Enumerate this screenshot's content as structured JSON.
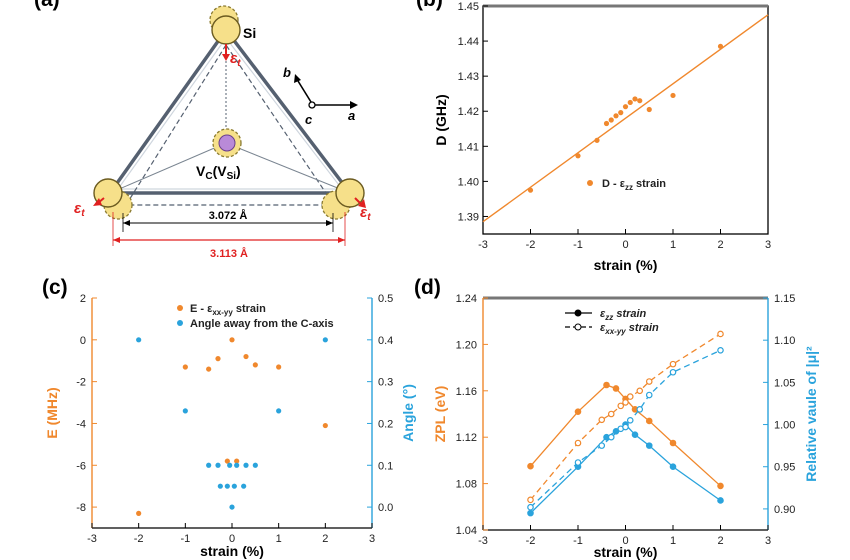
{
  "panel_labels": {
    "a": "(a)",
    "b": "(b)",
    "c": "(c)",
    "d": "(d)"
  },
  "colors": {
    "orange": "#f0882d",
    "blue": "#2aa3dc",
    "red": "#e02020",
    "dark": "#333333"
  },
  "diagram": {
    "si_label": "Si",
    "vc_label_main": "V",
    "vc_label_sub1": "C",
    "vc_label_paren_open": "(V",
    "vc_label_sub2": "Si",
    "vc_label_paren_close": ")",
    "epsilon_symbol": "ε",
    "epsilon_sub": "t",
    "axis_a": "a",
    "axis_b": "b",
    "axis_c": "c",
    "dim_inner": "3.072 Å",
    "dim_outer": "3.113 Å"
  },
  "chart_data": [
    {
      "id": "b",
      "type": "scatter",
      "xlabel": "strain (%)",
      "ylabel": "D (GHz)",
      "xlim": [
        -3,
        3
      ],
      "ylim": [
        1.385,
        1.45
      ],
      "xticks": [
        -3,
        -2,
        -1,
        0,
        1,
        2,
        3
      ],
      "yticks": [
        1.39,
        1.4,
        1.41,
        1.42,
        1.43,
        1.44,
        1.45
      ],
      "xtick_labels": [
        "-3",
        "-2",
        "-1",
        "0",
        "1",
        "2",
        "3"
      ],
      "ytick_labels": [
        "1.39",
        "1.40",
        "1.41",
        "1.42",
        "1.43",
        "1.44",
        "1.45"
      ],
      "legend": {
        "prefix": "D - ε",
        "sub": "zz",
        "suffix": " strain",
        "position": "center-right"
      },
      "series": [
        {
          "name": "D - εzz strain",
          "color": "#f0882d",
          "x": [
            -2,
            -1,
            -0.6,
            -0.4,
            -0.3,
            -0.2,
            -0.1,
            0,
            0.1,
            0.2,
            0.3,
            0.5,
            1,
            2
          ],
          "y": [
            1.3975,
            1.4073,
            1.4117,
            1.4165,
            1.4175,
            1.4187,
            1.4196,
            1.4213,
            1.4225,
            1.4235,
            1.423,
            1.4205,
            1.4245,
            1.4385
          ]
        }
      ],
      "fit_line": {
        "x": [
          -3,
          3
        ],
        "y": [
          1.3885,
          1.4475
        ]
      }
    },
    {
      "id": "c",
      "type": "scatter",
      "xlabel": "strain (%)",
      "ylabel_left": "E (MHz)",
      "ylabel_right": "Angle (°)",
      "xlim": [
        -3,
        3
      ],
      "ylim_left": [
        -9,
        2
      ],
      "ylim_right": [
        -0.05,
        0.5
      ],
      "xticks": [
        -3,
        -2,
        -1,
        0,
        1,
        2,
        3
      ],
      "xtick_labels": [
        "-3",
        "-2",
        "-1",
        "0",
        "1",
        "2",
        "3"
      ],
      "yticks_left": [
        -8,
        -6,
        -4,
        -2,
        0,
        2
      ],
      "ytick_labels_left": [
        "-8",
        "-6",
        "-4",
        "-2",
        "0",
        "2"
      ],
      "yticks_right": [
        0.0,
        0.1,
        0.2,
        0.3,
        0.4,
        0.5
      ],
      "ytick_labels_right": [
        "0.0",
        "0.1",
        "0.2",
        "0.3",
        "0.4",
        "0.5"
      ],
      "legend": [
        {
          "prefix": "E - ε",
          "sub": "xx-yy",
          "suffix": " strain",
          "color": "#f0882d"
        },
        {
          "prefix": "Angle away from the C-axis",
          "sub": "",
          "suffix": "",
          "color": "#2aa3dc"
        }
      ],
      "series": [
        {
          "name": "E - εxx-yy strain",
          "axis": "left",
          "color": "#f0882d",
          "x": [
            -2,
            -1,
            -0.5,
            -0.3,
            -0.1,
            0,
            0.1,
            0.3,
            0.5,
            1,
            2
          ],
          "y": [
            -8.3,
            -1.3,
            -1.4,
            -0.9,
            -5.8,
            0,
            -5.8,
            -0.8,
            -1.2,
            -1.3,
            -4.1
          ]
        },
        {
          "name": "Angle away from the C-axis",
          "axis": "right",
          "color": "#2aa3dc",
          "x": [
            -2,
            -1,
            -0.5,
            -0.3,
            -0.25,
            -0.1,
            -0.05,
            0,
            0.05,
            0.1,
            0.25,
            0.3,
            0.5,
            1,
            2
          ],
          "y": [
            0.4,
            0.23,
            0.1,
            0.1,
            0.05,
            0.05,
            0.1,
            0.0,
            0.05,
            0.1,
            0.05,
            0.1,
            0.1,
            0.23,
            0.4
          ]
        }
      ]
    },
    {
      "id": "d",
      "type": "line",
      "xlabel": "strain (%)",
      "ylabel_left": "ZPL (eV)",
      "ylabel_right": "Relative vaule of |μ|²",
      "xlim": [
        -3,
        3
      ],
      "ylim_left": [
        1.04,
        1.24
      ],
      "ylim_right": [
        0.875,
        1.15
      ],
      "xticks": [
        -3,
        -2,
        -1,
        0,
        1,
        2,
        3
      ],
      "xtick_labels": [
        "-3",
        "-2",
        "-1",
        "0",
        "1",
        "2",
        "3"
      ],
      "yticks_left": [
        1.04,
        1.08,
        1.12,
        1.16,
        1.2,
        1.24
      ],
      "ytick_labels_left": [
        "1.04",
        "1.08",
        "1.12",
        "1.16",
        "1.20",
        "1.24"
      ],
      "yticks_right": [
        0.9,
        0.95,
        1.0,
        1.05,
        1.1,
        1.15
      ],
      "ytick_labels_right": [
        "0.90",
        "0.95",
        "1.00",
        "1.05",
        "1.10",
        "1.15"
      ],
      "legend": [
        {
          "prefix": "ε",
          "sub": "zz",
          "suffix": " strain",
          "dash": false
        },
        {
          "prefix": "ε",
          "sub": "xx-yy",
          "suffix": " strain",
          "dash": true
        }
      ],
      "series": [
        {
          "name": "ZPL εzz strain",
          "axis": "left",
          "color": "#f0882d",
          "dash": false,
          "x": [
            -2,
            -1,
            -0.4,
            -0.2,
            0,
            0.2,
            0.5,
            1,
            2
          ],
          "y": [
            1.095,
            1.142,
            1.165,
            1.162,
            1.153,
            1.144,
            1.134,
            1.115,
            1.078
          ]
        },
        {
          "name": "ZPL εxx-yy strain",
          "axis": "left",
          "color": "#f0882d",
          "dash": true,
          "x": [
            -2,
            -1,
            -0.5,
            -0.3,
            -0.1,
            0,
            0.1,
            0.3,
            0.5,
            1,
            2
          ],
          "y": [
            1.066,
            1.115,
            1.135,
            1.14,
            1.147,
            1.15,
            1.155,
            1.16,
            1.168,
            1.183,
            1.209
          ]
        },
        {
          "name": "|μ|² εzz strain",
          "axis": "right",
          "color": "#2aa3dc",
          "dash": false,
          "x": [
            -2,
            -1,
            -0.4,
            -0.2,
            0,
            0.2,
            0.5,
            1,
            2
          ],
          "y": [
            0.895,
            0.95,
            0.985,
            0.992,
            1.0,
            0.988,
            0.975,
            0.95,
            0.91
          ]
        },
        {
          "name": "|μ|² εxx-yy strain",
          "axis": "right",
          "color": "#2aa3dc",
          "dash": true,
          "x": [
            -2,
            -1,
            -0.5,
            -0.3,
            -0.1,
            0,
            0.1,
            0.3,
            0.5,
            1,
            2
          ],
          "y": [
            0.902,
            0.955,
            0.975,
            0.985,
            0.995,
            0.997,
            1.005,
            1.018,
            1.035,
            1.062,
            1.088
          ]
        }
      ]
    }
  ]
}
